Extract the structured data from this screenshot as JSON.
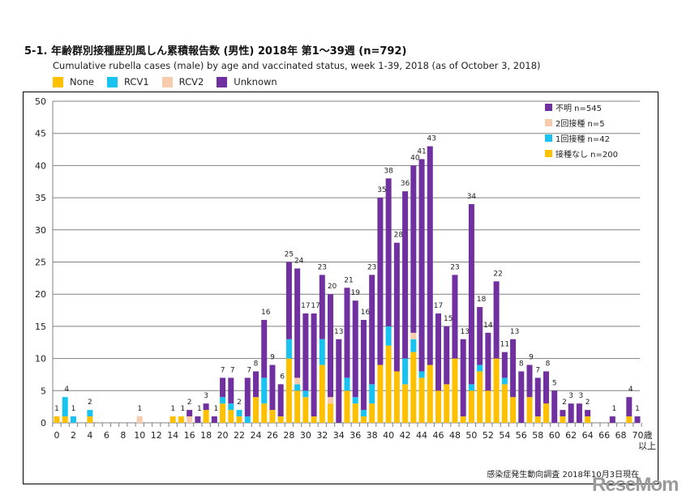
{
  "title": "5-1. 年齢群別接種歴別風しん累積報告数 (男性)  2018年 第1～39週 (n=792)",
  "subtitle": "Cumulative rubella cases (male) by age and vaccinated status, week 1-39, 2018 (as of October 3, 2018)",
  "top_legend": [
    "None",
    "RCV1",
    "RCV2",
    "Unknown"
  ],
  "source_note": "感染症発生動向調査 2018年10月3日現在",
  "watermark": "ReseMom",
  "chart_data": {
    "type": "bar",
    "stacked": true,
    "title": "5-1. 年齢群別接種歴別風しん累積報告数 (男性)  2018年 第1～39週 (n=792)",
    "x_unit_label": "歳",
    "x_last_label_suffix": "以上",
    "categories": [
      0,
      1,
      2,
      3,
      4,
      5,
      6,
      7,
      8,
      9,
      10,
      11,
      12,
      13,
      14,
      15,
      16,
      17,
      18,
      19,
      20,
      21,
      22,
      23,
      24,
      25,
      26,
      27,
      28,
      29,
      30,
      31,
      32,
      33,
      34,
      35,
      36,
      37,
      38,
      39,
      40,
      41,
      42,
      43,
      44,
      45,
      46,
      47,
      48,
      49,
      50,
      51,
      52,
      53,
      54,
      55,
      56,
      57,
      58,
      59,
      60,
      61,
      62,
      63,
      64,
      65,
      66,
      67,
      68,
      69,
      70
    ],
    "x_tick_labels": [
      "0",
      "2",
      "4",
      "6",
      "8",
      "10",
      "12",
      "14",
      "16",
      "18",
      "20",
      "22",
      "24",
      "26",
      "28",
      "30",
      "32",
      "34",
      "36",
      "38",
      "40",
      "42",
      "44",
      "46",
      "48",
      "50",
      "52",
      "54",
      "56",
      "58",
      "60",
      "62",
      "64",
      "66",
      "68",
      "70歳"
    ],
    "ylim": [
      0,
      50
    ],
    "y_ticks": [
      0,
      5,
      10,
      15,
      20,
      25,
      30,
      35,
      40,
      45,
      50
    ],
    "grid": true,
    "series": [
      {
        "name": "接種なし n=200",
        "short": "None",
        "color": "#FFC000",
        "values": [
          1,
          1,
          0,
          0,
          1,
          0,
          0,
          0,
          0,
          0,
          0,
          0,
          0,
          0,
          1,
          1,
          0,
          0,
          2,
          0,
          3,
          2,
          1,
          0,
          4,
          3,
          2,
          1,
          10,
          5,
          4,
          1,
          9,
          3,
          0,
          5,
          3,
          1,
          3,
          9,
          12,
          8,
          6,
          11,
          7,
          9,
          5,
          6,
          10,
          1,
          5,
          8,
          5,
          10,
          6,
          4,
          0,
          4,
          1,
          3,
          0,
          1,
          0,
          0,
          1,
          0,
          0,
          0,
          0,
          1,
          0
        ]
      },
      {
        "name": "1回接種 n=42",
        "short": "RCV1",
        "color": "#19C3F0",
        "values": [
          0,
          3,
          1,
          0,
          1,
          0,
          0,
          0,
          0,
          0,
          0,
          0,
          0,
          0,
          0,
          0,
          0,
          0,
          0,
          0,
          1,
          1,
          1,
          1,
          0,
          4,
          0,
          0,
          3,
          1,
          1,
          0,
          4,
          0,
          0,
          2,
          1,
          1,
          3,
          0,
          3,
          0,
          4,
          2,
          1,
          0,
          0,
          0,
          0,
          0,
          1,
          1,
          0,
          0,
          1,
          0,
          0,
          0,
          0,
          0,
          0,
          0,
          0,
          0,
          0,
          0,
          0,
          0,
          0,
          0,
          0
        ]
      },
      {
        "name": "2回接種 n=5",
        "short": "RCV2",
        "color": "#F8CBAD",
        "values": [
          0,
          0,
          0,
          0,
          0,
          0,
          0,
          0,
          0,
          0,
          1,
          0,
          0,
          0,
          0,
          0,
          1,
          0,
          0,
          0,
          0,
          0,
          0,
          0,
          0,
          0,
          0,
          0,
          0,
          1,
          0,
          0,
          0,
          1,
          0,
          0,
          0,
          0,
          0,
          0,
          0,
          0,
          0,
          1,
          0,
          0,
          0,
          0,
          0,
          0,
          0,
          0,
          0,
          0,
          0,
          0,
          0,
          0,
          0,
          0,
          0,
          0,
          0,
          0,
          0,
          0,
          0,
          0,
          0,
          0,
          0
        ]
      },
      {
        "name": "不明 n=545",
        "short": "Unknown",
        "color": "#7030A0",
        "values": [
          0,
          0,
          0,
          0,
          0,
          0,
          0,
          0,
          0,
          0,
          0,
          0,
          0,
          0,
          0,
          0,
          1,
          1,
          1,
          1,
          3,
          4,
          0,
          6,
          4,
          9,
          7,
          5,
          12,
          17,
          12,
          16,
          10,
          16,
          13,
          14,
          15,
          14,
          17,
          26,
          23,
          20,
          26,
          26,
          33,
          34,
          12,
          9,
          13,
          12,
          28,
          9,
          9,
          12,
          4,
          9,
          8,
          5,
          6,
          5,
          5,
          1,
          3,
          3,
          1,
          0,
          0,
          1,
          0,
          3,
          1
        ]
      }
    ],
    "totals": [
      1,
      4,
      1,
      0,
      2,
      0,
      0,
      0,
      0,
      0,
      1,
      0,
      0,
      0,
      1,
      1,
      2,
      1,
      3,
      1,
      7,
      7,
      2,
      7,
      8,
      16,
      9,
      6,
      25,
      24,
      17,
      17,
      23,
      20,
      13,
      21,
      19,
      16,
      23,
      35,
      38,
      28,
      36,
      40,
      41,
      43,
      17,
      15,
      23,
      13,
      34,
      18,
      14,
      22,
      11,
      13,
      8,
      9,
      7,
      8,
      5,
      2,
      3,
      3,
      2,
      0,
      0,
      1,
      0,
      4,
      1
    ],
    "legend_position": "top-right (inside)"
  }
}
